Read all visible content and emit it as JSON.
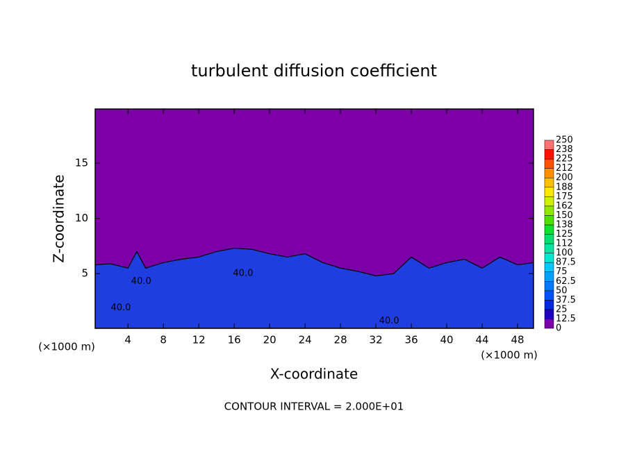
{
  "chart_data": {
    "type": "contour",
    "title": "turbulent diffusion coefficient",
    "xlabel": "X-coordinate",
    "ylabel": "Z-coordinate",
    "x_unit_left": "(×1000 m)",
    "x_unit_right": "(×1000 m)",
    "footer": "CONTOUR INTERVAL = 2.000E+01",
    "xlim": [
      0.3,
      49.8
    ],
    "ylim": [
      0.05,
      19.9
    ],
    "xticks": [
      4,
      8,
      12,
      16,
      20,
      24,
      28,
      32,
      36,
      40,
      44,
      48
    ],
    "yticks": [
      5,
      10,
      15
    ],
    "background_color": "#7b00a8",
    "layer": {
      "color": "#1f3ee0",
      "x": [
        0.3,
        2,
        4,
        5,
        6,
        8,
        10,
        12,
        14,
        16,
        18,
        20,
        22,
        24,
        26,
        28,
        30,
        32,
        34,
        36,
        38,
        40,
        42,
        44,
        46,
        48,
        49.8
      ],
      "z": [
        5.8,
        5.9,
        5.5,
        7,
        5.5,
        6,
        6.3,
        6.5,
        7,
        7.3,
        7.2,
        6.8,
        6.5,
        6.8,
        6,
        5.5,
        5.2,
        4.8,
        5,
        6.5,
        5.5,
        6,
        6.3,
        5.5,
        6.5,
        5.8,
        6
      ]
    },
    "contour_labels": [
      {
        "text": "40.0",
        "x": 3.2,
        "z": 1.9
      },
      {
        "text": "40.0",
        "x": 5.5,
        "z": 4.3
      },
      {
        "text": "40.0",
        "x": 17,
        "z": 5.0
      },
      {
        "text": "40.0",
        "x": 33.5,
        "z": 0.7
      }
    ],
    "levels": [
      0,
      12.5,
      25,
      37.5,
      50,
      62.5,
      75,
      87.5,
      100,
      112,
      125,
      138,
      150,
      162,
      175,
      188,
      200,
      212,
      225,
      238,
      250
    ],
    "colors": [
      "#7b00a8",
      "#2000c0",
      "#0028e0",
      "#0050ff",
      "#0078ff",
      "#00a0ff",
      "#00c8f8",
      "#00e8d0",
      "#00e8a0",
      "#00e070",
      "#10e030",
      "#50e000",
      "#90e800",
      "#d0f000",
      "#ffe800",
      "#ffc000",
      "#ff9000",
      "#ff5000",
      "#ff1000",
      "#ff7070"
    ]
  }
}
